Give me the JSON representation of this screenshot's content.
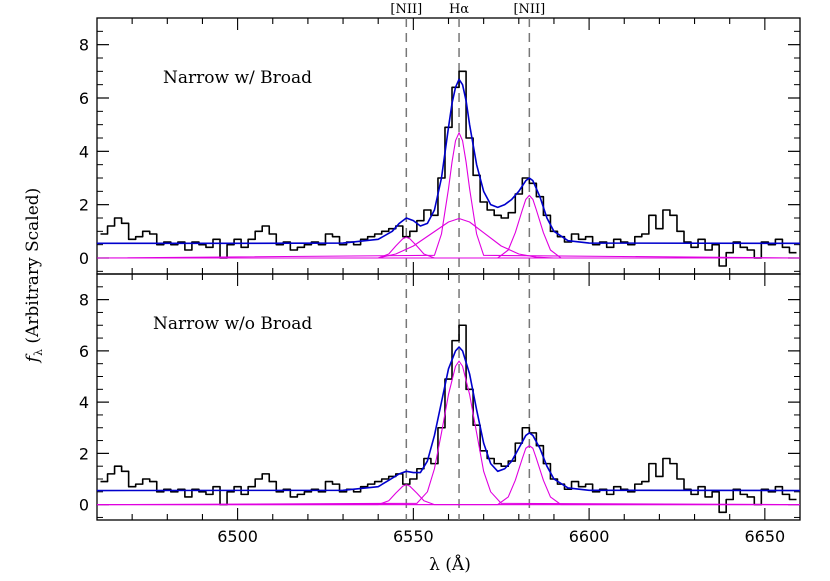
{
  "chart_data": [
    {
      "type": "line",
      "panel": "top",
      "title": "Narrow w/ Broad",
      "xlim": [
        6460,
        6660
      ],
      "ylim": [
        -0.6,
        9.0
      ],
      "yticks": [
        0,
        2,
        4,
        6,
        8
      ],
      "reference_lines": [
        {
          "label": "[NII]",
          "x": 6548
        },
        {
          "label": "Hα",
          "x": 6563
        },
        {
          "label": "[NII]",
          "x": 6583
        }
      ],
      "series": [
        {
          "kind": "observed-spectrum",
          "color": "#000000",
          "style": "step",
          "x": [
            6462,
            6464,
            6466,
            6468,
            6470,
            6472,
            6474,
            6476,
            6478,
            6480,
            6482,
            6484,
            6486,
            6488,
            6490,
            6492,
            6494,
            6496,
            6498,
            6500,
            6502,
            6504,
            6506,
            6508,
            6510,
            6512,
            6514,
            6516,
            6518,
            6520,
            6522,
            6524,
            6526,
            6528,
            6530,
            6532,
            6534,
            6536,
            6538,
            6540,
            6542,
            6544,
            6546,
            6548,
            6550,
            6552,
            6554,
            6556,
            6558,
            6560,
            6562,
            6564,
            6566,
            6568,
            6570,
            6572,
            6574,
            6576,
            6578,
            6580,
            6582,
            6584,
            6586,
            6588,
            6590,
            6592,
            6594,
            6596,
            6598,
            6600,
            6602,
            6604,
            6606,
            6608,
            6610,
            6612,
            6614,
            6616,
            6618,
            6620,
            6622,
            6624,
            6626,
            6628,
            6630,
            6632,
            6634,
            6636,
            6638,
            6640,
            6642,
            6644,
            6646,
            6648,
            6650,
            6652,
            6654,
            6656,
            6658
          ],
          "y": [
            0.9,
            1.2,
            1.5,
            1.3,
            0.7,
            0.8,
            1.0,
            0.9,
            0.5,
            0.6,
            0.5,
            0.6,
            0.3,
            0.6,
            0.5,
            0.4,
            0.7,
            0.0,
            0.5,
            0.7,
            0.4,
            0.7,
            1.0,
            1.2,
            0.9,
            0.5,
            0.6,
            0.3,
            0.4,
            0.5,
            0.6,
            0.5,
            0.9,
            0.8,
            0.5,
            0.6,
            0.5,
            0.7,
            0.8,
            0.9,
            1.0,
            1.1,
            1.2,
            0.8,
            1.0,
            1.4,
            1.8,
            1.6,
            3.0,
            4.9,
            6.4,
            7.0,
            4.5,
            3.1,
            2.1,
            1.8,
            1.6,
            1.5,
            1.7,
            2.4,
            3.0,
            2.8,
            2.3,
            1.6,
            1.0,
            0.8,
            0.6,
            0.9,
            0.7,
            0.8,
            0.5,
            0.6,
            0.4,
            0.7,
            0.6,
            0.5,
            0.8,
            0.9,
            1.6,
            1.1,
            1.8,
            1.6,
            1.0,
            0.6,
            0.4,
            0.7,
            0.3,
            0.5,
            -0.3,
            0.2,
            0.6,
            0.4,
            0.3,
            0.0,
            0.6,
            0.5,
            0.7,
            0.4,
            0.2
          ]
        },
        {
          "kind": "total-fit",
          "color": "#0000cc",
          "x": [
            6460,
            6500,
            6530,
            6540,
            6544,
            6546,
            6548,
            6550,
            6552,
            6554,
            6556,
            6558,
            6560,
            6561,
            6562,
            6563,
            6564,
            6565,
            6566,
            6568,
            6570,
            6572,
            6574,
            6576,
            6578,
            6580,
            6582,
            6583,
            6584,
            6586,
            6588,
            6590,
            6594,
            6600,
            6660
          ],
          "y": [
            0.55,
            0.55,
            0.56,
            0.7,
            1.0,
            1.3,
            1.5,
            1.4,
            1.2,
            1.3,
            1.8,
            3.0,
            4.9,
            5.8,
            6.4,
            6.7,
            6.5,
            5.9,
            5.0,
            3.5,
            2.5,
            2.0,
            1.9,
            2.0,
            2.2,
            2.5,
            2.9,
            3.0,
            2.9,
            2.3,
            1.5,
            1.0,
            0.65,
            0.56,
            0.55
          ]
        },
        {
          "kind": "component",
          "color": "#e000e0",
          "x": [
            6460,
            6540,
            6543,
            6545,
            6547,
            6548,
            6549,
            6551,
            6553,
            6556,
            6660
          ],
          "y": [
            0.0,
            0.0,
            0.15,
            0.45,
            0.72,
            0.78,
            0.72,
            0.45,
            0.15,
            0.0,
            0.0
          ]
        },
        {
          "kind": "component",
          "color": "#e000e0",
          "x": [
            6460,
            6556,
            6558,
            6560,
            6561,
            6562,
            6563,
            6564,
            6565,
            6566,
            6568,
            6570,
            6660
          ],
          "y": [
            0.0,
            0.1,
            0.9,
            2.6,
            3.6,
            4.4,
            4.7,
            4.4,
            3.6,
            2.6,
            0.9,
            0.1,
            0.0
          ]
        },
        {
          "kind": "component",
          "color": "#e000e0",
          "x": [
            6460,
            6540,
            6545,
            6550,
            6555,
            6560,
            6563,
            6566,
            6570,
            6575,
            6580,
            6585,
            6590,
            6660
          ],
          "y": [
            0.0,
            0.0,
            0.15,
            0.45,
            0.9,
            1.35,
            1.48,
            1.35,
            0.95,
            0.45,
            0.15,
            0.03,
            0.0,
            0.0
          ]
        },
        {
          "kind": "component",
          "color": "#e000e0",
          "x": [
            6460,
            6574,
            6577,
            6579,
            6581,
            6582,
            6583,
            6584,
            6585,
            6587,
            6589,
            6592,
            6660
          ],
          "y": [
            0.0,
            0.0,
            0.3,
            0.95,
            1.8,
            2.2,
            2.35,
            2.2,
            1.8,
            0.95,
            0.3,
            0.0,
            0.0
          ]
        },
        {
          "kind": "zero-line",
          "color": "#e000e0",
          "x": [
            6460,
            6660
          ],
          "y": [
            0,
            0
          ]
        }
      ]
    },
    {
      "type": "line",
      "panel": "bottom",
      "title": "Narrow w/o Broad",
      "xlabel": "λ (Å)",
      "xlim": [
        6460,
        6660
      ],
      "ylim": [
        -0.6,
        9.0
      ],
      "xticks": [
        6500,
        6550,
        6600,
        6650
      ],
      "yticks": [
        0,
        2,
        4,
        6,
        8
      ],
      "reference_lines": [
        {
          "label": "",
          "x": 6548
        },
        {
          "label": "",
          "x": 6563
        },
        {
          "label": "",
          "x": 6583
        }
      ],
      "series": [
        {
          "kind": "observed-spectrum",
          "color": "#000000",
          "style": "step",
          "x": [
            6462,
            6464,
            6466,
            6468,
            6470,
            6472,
            6474,
            6476,
            6478,
            6480,
            6482,
            6484,
            6486,
            6488,
            6490,
            6492,
            6494,
            6496,
            6498,
            6500,
            6502,
            6504,
            6506,
            6508,
            6510,
            6512,
            6514,
            6516,
            6518,
            6520,
            6522,
            6524,
            6526,
            6528,
            6530,
            6532,
            6534,
            6536,
            6538,
            6540,
            6542,
            6544,
            6546,
            6548,
            6550,
            6552,
            6554,
            6556,
            6558,
            6560,
            6562,
            6564,
            6566,
            6568,
            6570,
            6572,
            6574,
            6576,
            6578,
            6580,
            6582,
            6584,
            6586,
            6588,
            6590,
            6592,
            6594,
            6596,
            6598,
            6600,
            6602,
            6604,
            6606,
            6608,
            6610,
            6612,
            6614,
            6616,
            6618,
            6620,
            6622,
            6624,
            6626,
            6628,
            6630,
            6632,
            6634,
            6636,
            6638,
            6640,
            6642,
            6644,
            6646,
            6648,
            6650,
            6652,
            6654,
            6656,
            6658
          ],
          "y": [
            0.9,
            1.2,
            1.5,
            1.3,
            0.7,
            0.8,
            1.0,
            0.9,
            0.5,
            0.6,
            0.5,
            0.6,
            0.3,
            0.6,
            0.5,
            0.4,
            0.7,
            0.0,
            0.5,
            0.7,
            0.4,
            0.7,
            1.0,
            1.2,
            0.9,
            0.5,
            0.6,
            0.3,
            0.4,
            0.5,
            0.6,
            0.5,
            0.9,
            0.8,
            0.5,
            0.6,
            0.5,
            0.7,
            0.8,
            0.9,
            1.0,
            1.1,
            1.2,
            0.8,
            1.0,
            1.4,
            1.8,
            1.6,
            3.0,
            4.9,
            6.4,
            7.0,
            4.5,
            3.1,
            2.1,
            1.8,
            1.6,
            1.5,
            1.7,
            2.4,
            3.0,
            2.8,
            2.3,
            1.6,
            1.0,
            0.8,
            0.6,
            0.9,
            0.7,
            0.8,
            0.5,
            0.6,
            0.4,
            0.7,
            0.6,
            0.5,
            0.8,
            0.9,
            1.6,
            1.1,
            1.8,
            1.6,
            1.0,
            0.6,
            0.4,
            0.7,
            0.3,
            0.5,
            -0.3,
            0.2,
            0.6,
            0.4,
            0.3,
            0.0,
            0.6,
            0.5,
            0.7,
            0.4,
            0.2
          ]
        },
        {
          "kind": "total-fit",
          "color": "#0000cc",
          "x": [
            6460,
            6530,
            6540,
            6543,
            6546,
            6548,
            6550,
            6552,
            6554,
            6556,
            6558,
            6560,
            6562,
            6563,
            6564,
            6566,
            6568,
            6570,
            6572,
            6574,
            6576,
            6578,
            6580,
            6582,
            6583,
            6584,
            6586,
            6588,
            6590,
            6594,
            6600,
            6660
          ],
          "y": [
            0.55,
            0.56,
            0.7,
            0.95,
            1.2,
            1.3,
            1.25,
            1.25,
            1.7,
            2.7,
            4.0,
            5.3,
            6.0,
            6.15,
            6.0,
            5.1,
            3.7,
            2.4,
            1.6,
            1.3,
            1.4,
            1.7,
            2.2,
            2.7,
            2.8,
            2.7,
            2.2,
            1.5,
            1.0,
            0.65,
            0.56,
            0.55
          ]
        },
        {
          "kind": "component",
          "color": "#e000e0",
          "x": [
            6460,
            6540,
            6543,
            6545,
            6547,
            6548,
            6549,
            6551,
            6553,
            6556,
            6660
          ],
          "y": [
            0.0,
            0.0,
            0.15,
            0.45,
            0.72,
            0.78,
            0.72,
            0.45,
            0.15,
            0.0,
            0.0
          ]
        },
        {
          "kind": "component",
          "color": "#e000e0",
          "x": [
            6460,
            6551,
            6554,
            6556,
            6558,
            6560,
            6562,
            6563,
            6564,
            6566,
            6568,
            6570,
            6572,
            6575,
            6660
          ],
          "y": [
            0.0,
            0.05,
            0.5,
            1.4,
            2.8,
            4.3,
            5.4,
            5.6,
            5.4,
            4.3,
            2.8,
            1.3,
            0.5,
            0.05,
            0.0
          ]
        },
        {
          "kind": "component",
          "color": "#e000e0",
          "x": [
            6460,
            6574,
            6577,
            6579,
            6581,
            6582,
            6583,
            6584,
            6585,
            6587,
            6589,
            6592,
            6660
          ],
          "y": [
            0.0,
            0.0,
            0.3,
            0.95,
            1.8,
            2.2,
            2.3,
            2.2,
            1.8,
            0.95,
            0.3,
            0.0,
            0.0
          ]
        },
        {
          "kind": "zero-line",
          "color": "#e000e0",
          "x": [
            6460,
            6660
          ],
          "y": [
            0,
            0
          ]
        }
      ]
    }
  ],
  "ylabel_main": "f",
  "ylabel_sub": "λ",
  "ylabel_rest": " (Arbitrary Scaled)"
}
